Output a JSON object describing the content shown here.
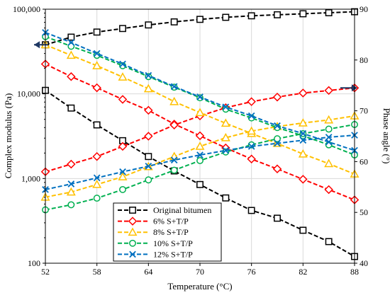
{
  "chart_data": {
    "type": "line",
    "xlabel": "Temperature (°C)",
    "ylabel_left": "Complex modulus (Pa)",
    "ylabel_right": "Phase angle (°)",
    "x_ticks": [
      52,
      58,
      64,
      70,
      76,
      82,
      88
    ],
    "x_tick_labels": [
      "52",
      "58",
      "64",
      "70",
      "76",
      "82",
      "88"
    ],
    "xlim": [
      52,
      88
    ],
    "y_left_scale": "log",
    "y_left_ticks": [
      100,
      1000,
      10000,
      100000
    ],
    "y_left_tick_labels": [
      "100",
      "1,000",
      "10,000",
      "100,000"
    ],
    "y_left_lim": [
      100,
      100000
    ],
    "y_right_ticks": [
      40,
      50,
      60,
      70,
      80,
      90
    ],
    "y_right_tick_labels": [
      "40",
      "50",
      "60",
      "70",
      "80",
      "90"
    ],
    "y_right_lim": [
      40,
      90
    ],
    "grid": true,
    "legend_position": "bottom-center",
    "x": [
      52,
      55,
      58,
      61,
      64,
      67,
      70,
      73,
      76,
      79,
      82,
      85,
      88
    ],
    "series": [
      {
        "name": "Original bitumen",
        "color": "#000000",
        "marker": "square",
        "modulus": [
          11000,
          6800,
          4300,
          2800,
          1820,
          1230,
          850,
          590,
          420,
          340,
          245,
          180,
          120
        ],
        "phase_angle": [
          83.0,
          84.5,
          85.5,
          86.2,
          86.9,
          87.5,
          88.0,
          88.4,
          88.7,
          88.9,
          89.1,
          89.3,
          89.5
        ]
      },
      {
        "name": "6% S+T/P",
        "color": "#ff0000",
        "marker": "diamond",
        "modulus": [
          22500,
          16000,
          11800,
          8600,
          6400,
          4400,
          3200,
          2300,
          1700,
          1300,
          980,
          740,
          560
        ],
        "phase_angle": [
          58.0,
          59.5,
          61.0,
          63.0,
          65.0,
          67.2,
          69.0,
          70.6,
          71.8,
          72.7,
          73.5,
          74.0,
          74.5
        ]
      },
      {
        "name": "8% S+T/P",
        "color": "#ffc000",
        "marker": "triangle",
        "modulus": [
          38000,
          28500,
          21500,
          15800,
          11500,
          8100,
          6000,
          4500,
          3400,
          2600,
          1950,
          1500,
          1130
        ],
        "phase_angle": [
          53.0,
          54.0,
          55.5,
          57.0,
          59.0,
          61.0,
          63.0,
          64.7,
          66.0,
          66.9,
          67.6,
          68.2,
          69.0
        ]
      },
      {
        "name": "10% S+T/P",
        "color": "#00b050",
        "marker": "circle",
        "modulus": [
          47500,
          36500,
          28500,
          21500,
          16000,
          12000,
          9000,
          6600,
          5200,
          4000,
          3200,
          2500,
          1900
        ],
        "phase_angle": [
          50.5,
          51.5,
          52.8,
          54.5,
          56.4,
          58.3,
          60.2,
          61.9,
          63.3,
          64.5,
          65.5,
          66.4,
          67.3
        ]
      },
      {
        "name": "12% S+T/P",
        "color": "#0070c0",
        "marker": "x",
        "modulus": [
          53000,
          40500,
          30000,
          22500,
          16500,
          12200,
          9200,
          7000,
          5500,
          4200,
          3400,
          2700,
          2150
        ],
        "phase_angle": [
          54.5,
          55.6,
          56.8,
          58.0,
          59.1,
          60.3,
          61.3,
          62.2,
          63.0,
          63.6,
          64.2,
          64.8,
          65.2
        ]
      }
    ],
    "annotations": [
      {
        "type": "arrow",
        "target_axis": "right",
        "direction": "left",
        "at_series": 0,
        "at_index": 0
      },
      {
        "type": "arrow",
        "target_axis": "right",
        "direction": "right",
        "at_series": 1,
        "at_index": 12
      }
    ]
  }
}
